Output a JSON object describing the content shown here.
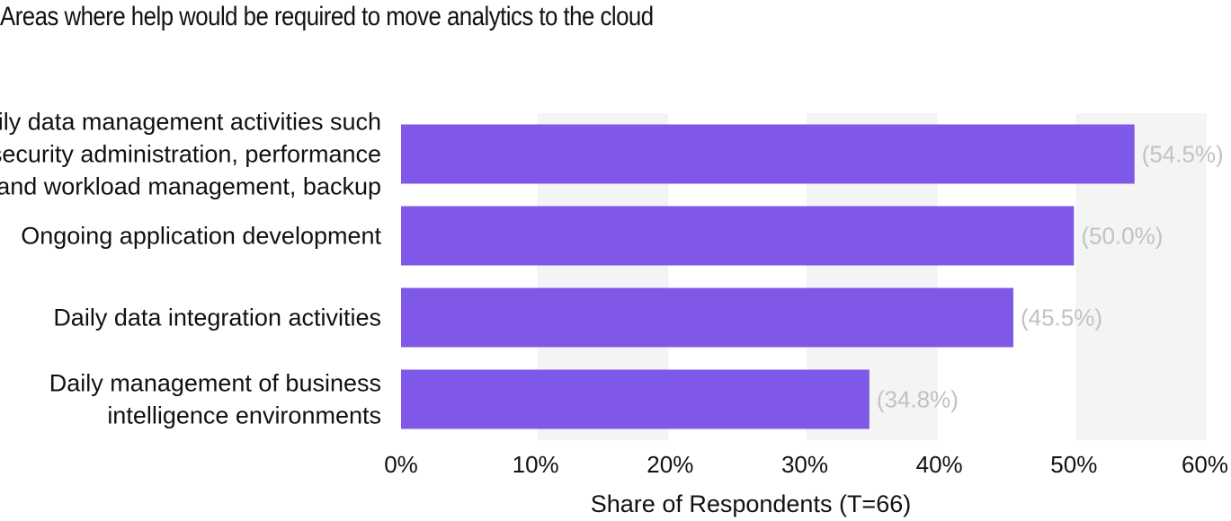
{
  "chart_data": {
    "type": "bar",
    "orientation": "horizontal",
    "title": "Areas where help would be required to move analytics to the cloud",
    "xlabel": "Share of Respondents (T=66)",
    "ylabel": "",
    "categories": [
      [
        "Daily data management activities such",
        "as security administration, performance",
        "and workload management, backup"
      ],
      [
        "Ongoing application development"
      ],
      [
        "Daily data integration activities"
      ],
      [
        "Daily management of business",
        "intelligence environments"
      ]
    ],
    "values": [
      54.5,
      50.0,
      45.5,
      34.8
    ],
    "value_labels": [
      "(54.5%)",
      "(50.0%)",
      "(45.5%)",
      "(34.8%)"
    ],
    "xlim": [
      0,
      60
    ],
    "ticks": [
      0,
      10,
      20,
      30,
      40,
      50,
      60
    ],
    "tick_labels": [
      "0%",
      "10%",
      "20%",
      "30%",
      "40%",
      "50%",
      "60%"
    ],
    "grid": "alternating vertical bands",
    "legend": "none",
    "colors": {
      "bar": "#7f58e8",
      "band": "#f4f4f4",
      "value_label": "#c2c2c2",
      "text": "#111111"
    }
  }
}
